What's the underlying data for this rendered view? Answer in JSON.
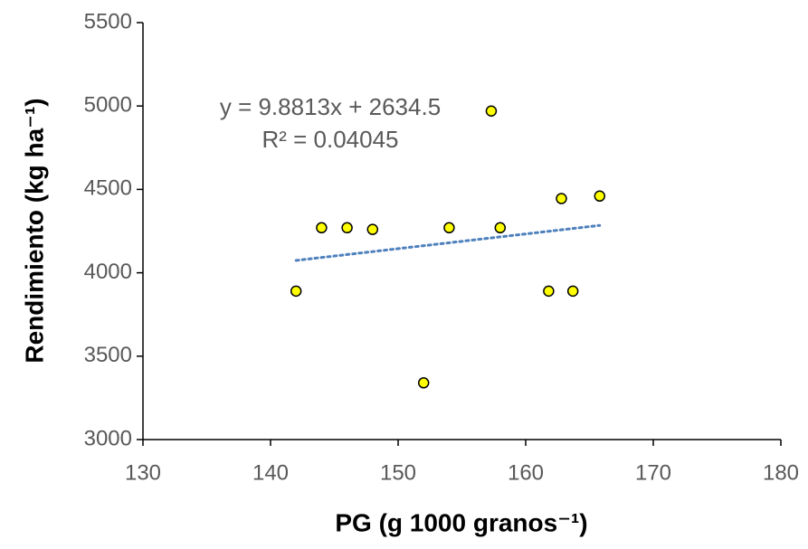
{
  "chart_data": {
    "type": "scatter",
    "xlabel": "PG (g 1000 granos⁻¹)",
    "ylabel": "Rendimiento (kg ha⁻¹)",
    "equation": "y = 9.8813x + 2634.5",
    "r_squared": "R² = 0.04045",
    "trendline": "linear",
    "trendline_color": "#4f81bd",
    "marker_color": "#ffff00",
    "series": [
      {
        "x": [
          142,
          144,
          146,
          148,
          152,
          154,
          157.3,
          158,
          161.8,
          162.8,
          163.7,
          165.8
        ],
        "values": [
          3890,
          4270,
          4270,
          4260,
          3340,
          4270,
          4970,
          4270,
          3890,
          4445,
          3890,
          4460
        ]
      }
    ],
    "xlim": [
      130,
      180
    ],
    "xticks": [
      130,
      140,
      150,
      160,
      170,
      180
    ],
    "ylim": [
      3000,
      5500
    ],
    "yticks": [
      3000,
      3500,
      4000,
      4500,
      5000,
      5500
    ]
  }
}
